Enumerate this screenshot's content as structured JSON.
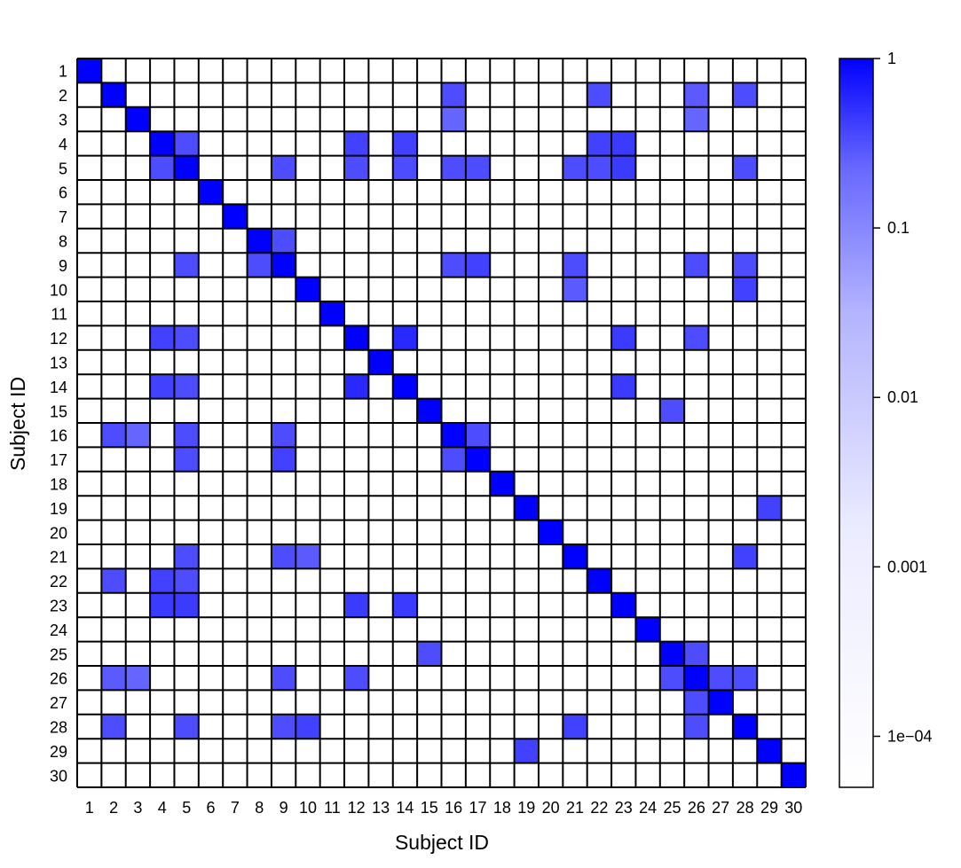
{
  "chart_data": {
    "type": "heatmap",
    "title": "",
    "xlabel": "Subject ID",
    "ylabel": "Subject ID",
    "categories": [
      "1",
      "2",
      "3",
      "4",
      "5",
      "6",
      "7",
      "8",
      "9",
      "10",
      "11",
      "12",
      "13",
      "14",
      "15",
      "16",
      "17",
      "18",
      "19",
      "20",
      "21",
      "22",
      "23",
      "24",
      "25",
      "26",
      "27",
      "28",
      "29",
      "30"
    ],
    "color_scale": {
      "type": "log",
      "range": [
        5e-05,
        1
      ],
      "low_color": "#ffffff",
      "high_color": "#0000ff",
      "ticks": [
        {
          "value": 1,
          "label": "1"
        },
        {
          "value": 0.1,
          "label": "0.1"
        },
        {
          "value": 0.01,
          "label": "0.01"
        },
        {
          "value": 0.001,
          "label": "0.001"
        },
        {
          "value": 0.0001,
          "label": "1e−04"
        }
      ]
    },
    "legend": "right",
    "grid": true,
    "block_similarity": {
      "note_rows": "row i = subject i, column j = subject j, approximate dominant similarity level",
      "diagonal": 1,
      "strong_pairs": [
        [
          "2",
          "16",
          0.05
        ],
        [
          "2",
          "22",
          0.05
        ],
        [
          "2",
          "26",
          0.03
        ],
        [
          "2",
          "28",
          0.05
        ],
        [
          "3",
          "16",
          0.02
        ],
        [
          "3",
          "26",
          0.02
        ],
        [
          "4",
          "5",
          0.05
        ],
        [
          "4",
          "12",
          0.08
        ],
        [
          "4",
          "14",
          0.08
        ],
        [
          "4",
          "22",
          0.08
        ],
        [
          "4",
          "23",
          0.1
        ],
        [
          "5",
          "9",
          0.05
        ],
        [
          "5",
          "12",
          0.05
        ],
        [
          "5",
          "14",
          0.05
        ],
        [
          "5",
          "16",
          0.05
        ],
        [
          "5",
          "17",
          0.05
        ],
        [
          "5",
          "21",
          0.05
        ],
        [
          "5",
          "22",
          0.05
        ],
        [
          "5",
          "23",
          0.1
        ],
        [
          "5",
          "28",
          0.05
        ],
        [
          "8",
          "9",
          0.05
        ],
        [
          "9",
          "16",
          0.05
        ],
        [
          "9",
          "17",
          0.08
        ],
        [
          "9",
          "21",
          0.05
        ],
        [
          "9",
          "26",
          0.05
        ],
        [
          "9",
          "28",
          0.05
        ],
        [
          "10",
          "28",
          0.08
        ],
        [
          "10",
          "21",
          0.03
        ],
        [
          "12",
          "14",
          0.2
        ],
        [
          "12",
          "23",
          0.1
        ],
        [
          "12",
          "26",
          0.05
        ],
        [
          "14",
          "23",
          0.1
        ],
        [
          "15",
          "25",
          0.05
        ],
        [
          "16",
          "17",
          0.05
        ],
        [
          "19",
          "29",
          0.08
        ],
        [
          "21",
          "28",
          0.08
        ],
        [
          "25",
          "26",
          0.05
        ],
        [
          "26",
          "27",
          0.05
        ],
        [
          "26",
          "28",
          0.05
        ]
      ]
    }
  }
}
